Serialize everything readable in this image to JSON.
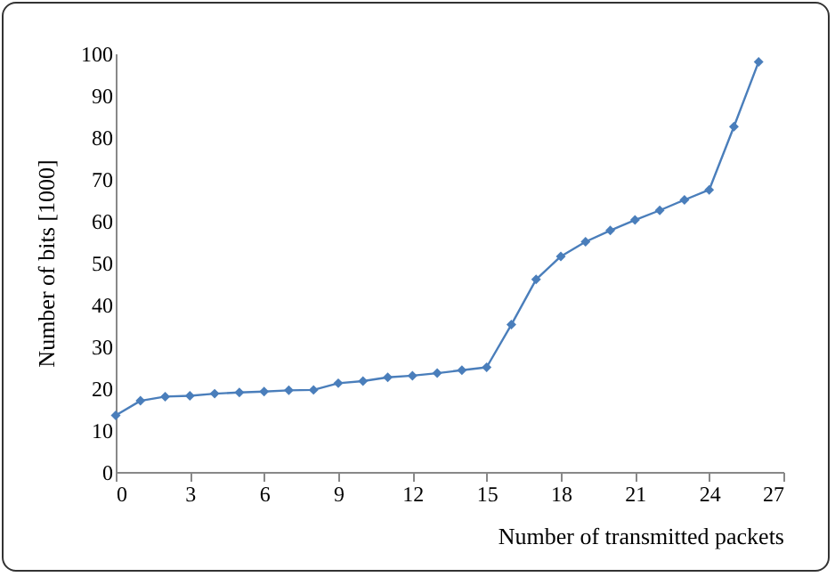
{
  "chart_data": {
    "type": "line",
    "xlabel": "Number of transmitted packets",
    "ylabel": "Number of bits [1000]",
    "x": [
      0,
      1,
      2,
      3,
      4,
      5,
      6,
      7,
      8,
      9,
      10,
      11,
      12,
      13,
      14,
      15,
      16,
      17,
      18,
      19,
      20,
      21,
      22,
      23,
      24,
      25,
      26
    ],
    "series": [
      {
        "color": "#4a7ebb",
        "values": [
          13.5,
          17,
          18,
          18.2,
          18.7,
          19,
          19.2,
          19.5,
          19.6,
          21.2,
          21.7,
          22.6,
          23,
          23.6,
          24.3,
          25,
          35.2,
          46,
          51.5,
          55,
          57.7,
          60.2,
          62.5,
          65,
          67.4,
          82.5,
          98
        ]
      }
    ],
    "xlim": [
      0,
      27
    ],
    "xticks": [
      0,
      3,
      6,
      9,
      12,
      15,
      18,
      21,
      24,
      27
    ],
    "ylim": [
      0,
      100
    ],
    "yticks": [
      0,
      10,
      20,
      30,
      40,
      50,
      60,
      70,
      80,
      90,
      100
    ],
    "grid": false,
    "marker": "diamond",
    "line_style": "solid"
  }
}
